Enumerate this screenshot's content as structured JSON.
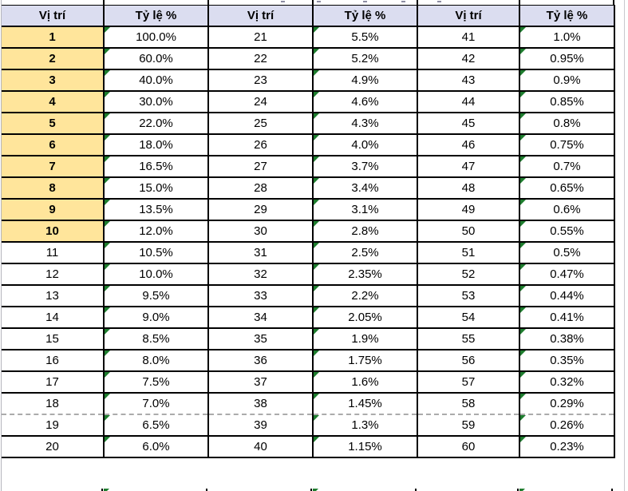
{
  "sheet": {
    "column_headers": [
      "Vị trí",
      "Tỷ lệ %",
      "Vị trí",
      "Tỷ lệ %",
      "Vị trí",
      "Tỷ lệ %"
    ],
    "rows": [
      [
        "1",
        "100.0%",
        "21",
        "5.5%",
        "41",
        "1.0%"
      ],
      [
        "2",
        "60.0%",
        "22",
        "5.2%",
        "42",
        "0.95%"
      ],
      [
        "3",
        "40.0%",
        "23",
        "4.9%",
        "43",
        "0.9%"
      ],
      [
        "4",
        "30.0%",
        "24",
        "4.6%",
        "44",
        "0.85%"
      ],
      [
        "5",
        "22.0%",
        "25",
        "4.3%",
        "45",
        "0.8%"
      ],
      [
        "6",
        "18.0%",
        "26",
        "4.0%",
        "46",
        "0.75%"
      ],
      [
        "7",
        "16.5%",
        "27",
        "3.7%",
        "47",
        "0.7%"
      ],
      [
        "8",
        "15.0%",
        "28",
        "3.4%",
        "48",
        "0.65%"
      ],
      [
        "9",
        "13.5%",
        "29",
        "3.1%",
        "49",
        "0.6%"
      ],
      [
        "10",
        "12.0%",
        "30",
        "2.8%",
        "50",
        "0.55%"
      ],
      [
        "11",
        "10.5%",
        "31",
        "2.5%",
        "51",
        "0.5%"
      ],
      [
        "12",
        "10.0%",
        "32",
        "2.35%",
        "52",
        "0.47%"
      ],
      [
        "13",
        "9.5%",
        "33",
        "2.2%",
        "53",
        "0.44%"
      ],
      [
        "14",
        "9.0%",
        "34",
        "2.05%",
        "54",
        "0.41%"
      ],
      [
        "15",
        "8.5%",
        "35",
        "1.9%",
        "55",
        "0.38%"
      ],
      [
        "16",
        "8.0%",
        "36",
        "1.75%",
        "56",
        "0.35%"
      ],
      [
        "17",
        "7.5%",
        "37",
        "1.6%",
        "57",
        "0.32%"
      ],
      [
        "18",
        "7.0%",
        "38",
        "1.45%",
        "58",
        "0.29%"
      ],
      [
        "19",
        "6.5%",
        "39",
        "1.3%",
        "59",
        "0.26%"
      ],
      [
        "20",
        "6.0%",
        "40",
        "1.15%",
        "60",
        "0.23%"
      ]
    ],
    "highlighted_first_rows": 10,
    "page_break_after_row": 18
  },
  "icons": {
    "error_indicator": "excel-green-corner-triangle"
  },
  "colors": {
    "header_bg": "#DBDDF0",
    "highlight_bg": "#FFE59B",
    "error_indicator": "#1E7D2E",
    "cell_border": "#000000",
    "page_break_dash": "#ABABAB",
    "worksheet_gridline": "#B4B4BC"
  }
}
